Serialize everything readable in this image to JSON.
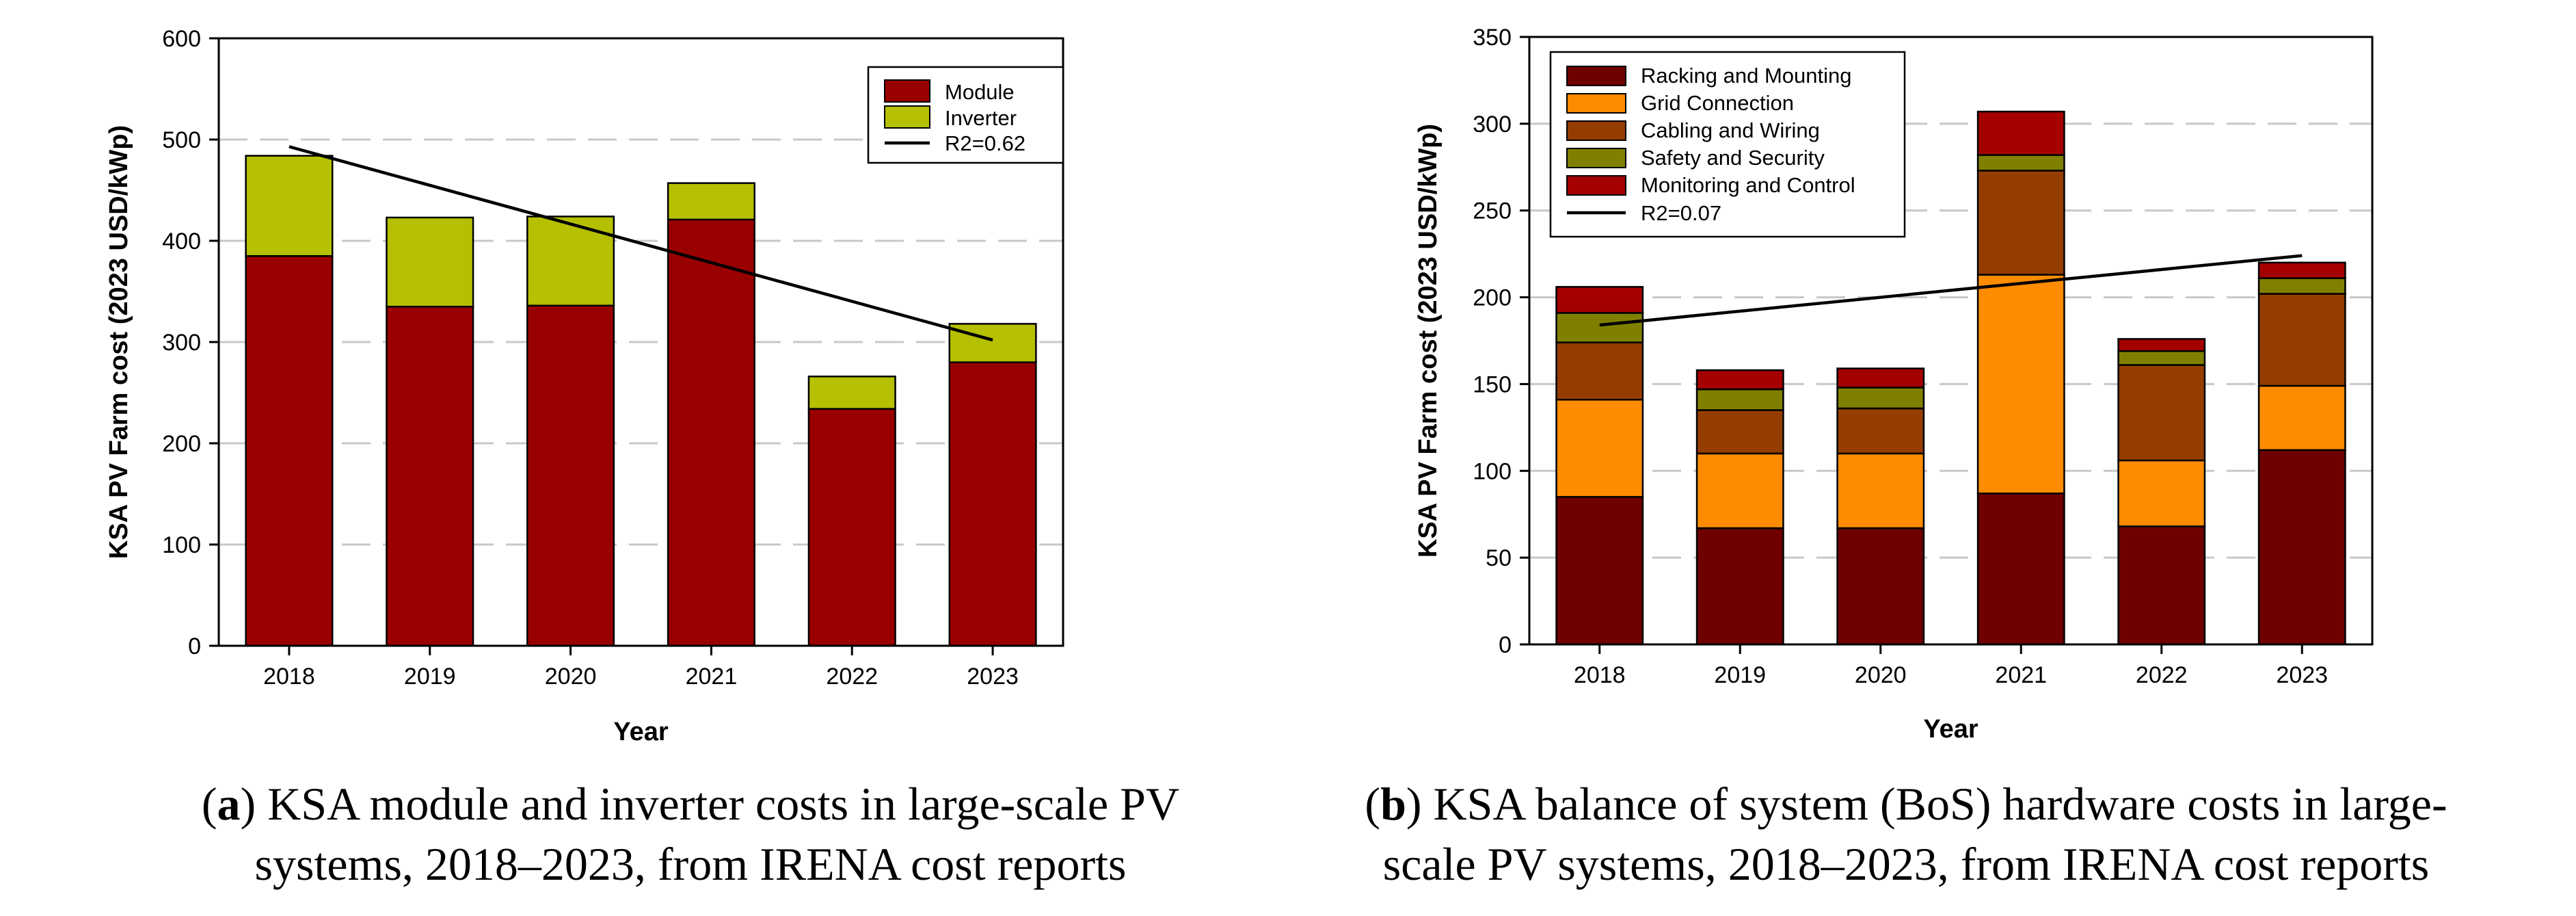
{
  "chart_data": [
    {
      "type": "bar",
      "stacked": true,
      "categories": [
        "2018",
        "2019",
        "2020",
        "2021",
        "2022",
        "2023"
      ],
      "series": [
        {
          "name": "Module",
          "color": "#990000",
          "values": [
            385,
            335,
            336,
            421,
            234,
            280
          ]
        },
        {
          "name": "Inverter",
          "color": "#b5c000",
          "values": [
            99,
            88,
            88,
            36,
            32,
            38
          ]
        }
      ],
      "trendline": {
        "name": "R2=0.62",
        "start": 493,
        "end": 302
      },
      "yticks": [
        "0",
        "100",
        "200",
        "300",
        "400",
        "500",
        "600"
      ],
      "ylim": [
        0,
        600
      ],
      "xlabel": "Year",
      "ylabel": "KSA PV Farm cost (2023 USD/kWp)",
      "caption_label": "a",
      "caption": "KSA module and inverter costs in large-scale PV systems, 2018–2023, from IRENA cost reports"
    },
    {
      "type": "bar",
      "stacked": true,
      "categories": [
        "2018",
        "2019",
        "2020",
        "2021",
        "2022",
        "2023"
      ],
      "series": [
        {
          "name": "Racking and Mounting",
          "color": "#6e0000",
          "values": [
            85,
            67,
            67,
            87,
            68,
            112
          ]
        },
        {
          "name": "Grid Connection",
          "color": "#ff8c00",
          "values": [
            56,
            43,
            43,
            126,
            38,
            37
          ]
        },
        {
          "name": "Cabling and Wiring",
          "color": "#953d00",
          "values": [
            33,
            25,
            26,
            60,
            55,
            53
          ]
        },
        {
          "name": "Safety and Security",
          "color": "#808000",
          "values": [
            17,
            12,
            12,
            9,
            8,
            9
          ]
        },
        {
          "name": "Monitoring and Control",
          "color": "#a50000",
          "values": [
            15,
            11,
            11,
            25,
            7,
            9
          ]
        }
      ],
      "trendline": {
        "name": "R2=0.07",
        "start": 184,
        "end": 224
      },
      "yticks": [
        "0",
        "50",
        "100",
        "150",
        "200",
        "250",
        "300",
        "350"
      ],
      "ylim": [
        0,
        350
      ],
      "xlabel": "Year",
      "ylabel": "KSA PV Farm cost (2023 USD/kWp)",
      "caption_label": "b",
      "caption": "KSA balance of system (BoS) hardware costs in large-scale PV systems, 2018–2023, from IRENA cost reports"
    }
  ],
  "captions": {
    "a": {
      "label": "a",
      "line1": ") KSA module and inverter costs in large-scale PV",
      "line2": "systems, 2018–2023, from IRENA cost reports"
    },
    "b": {
      "label": "b",
      "line1": ") KSA balance of system (BoS) hardware costs in large-",
      "line2": "scale PV systems, 2018–2023, from IRENA cost reports"
    }
  }
}
